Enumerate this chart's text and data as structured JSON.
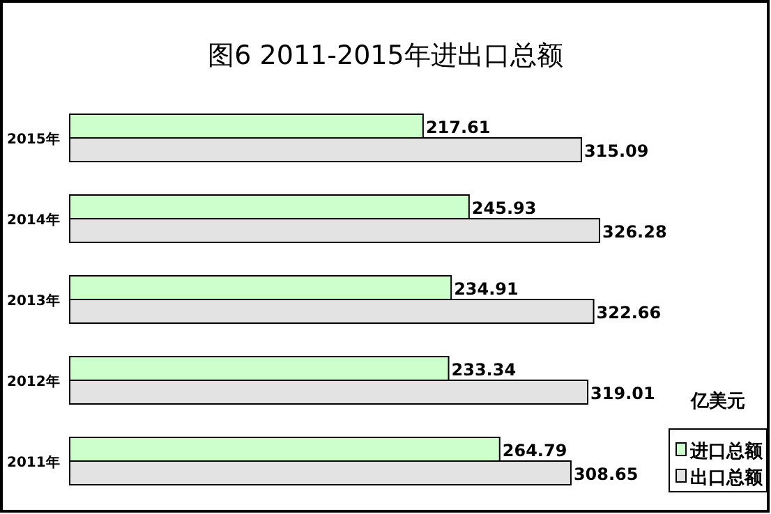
{
  "chart_data": {
    "type": "bar",
    "orientation": "horizontal",
    "title": "图6  2011-2015年进出口总额",
    "legend_title": "亿美元",
    "legend": "bottom right",
    "data_labels": true,
    "categories": [
      "2015年",
      "2014年",
      "2013年",
      "2012年",
      "2011年"
    ],
    "series": [
      {
        "name": "进口总额",
        "color": "#ccffcc",
        "values": [
          217.61,
          245.93,
          234.91,
          233.34,
          264.79
        ]
      },
      {
        "name": "出口总额",
        "color": "#e3e3e3",
        "values": [
          315.09,
          326.28,
          322.66,
          319.01,
          308.65
        ]
      }
    ]
  }
}
